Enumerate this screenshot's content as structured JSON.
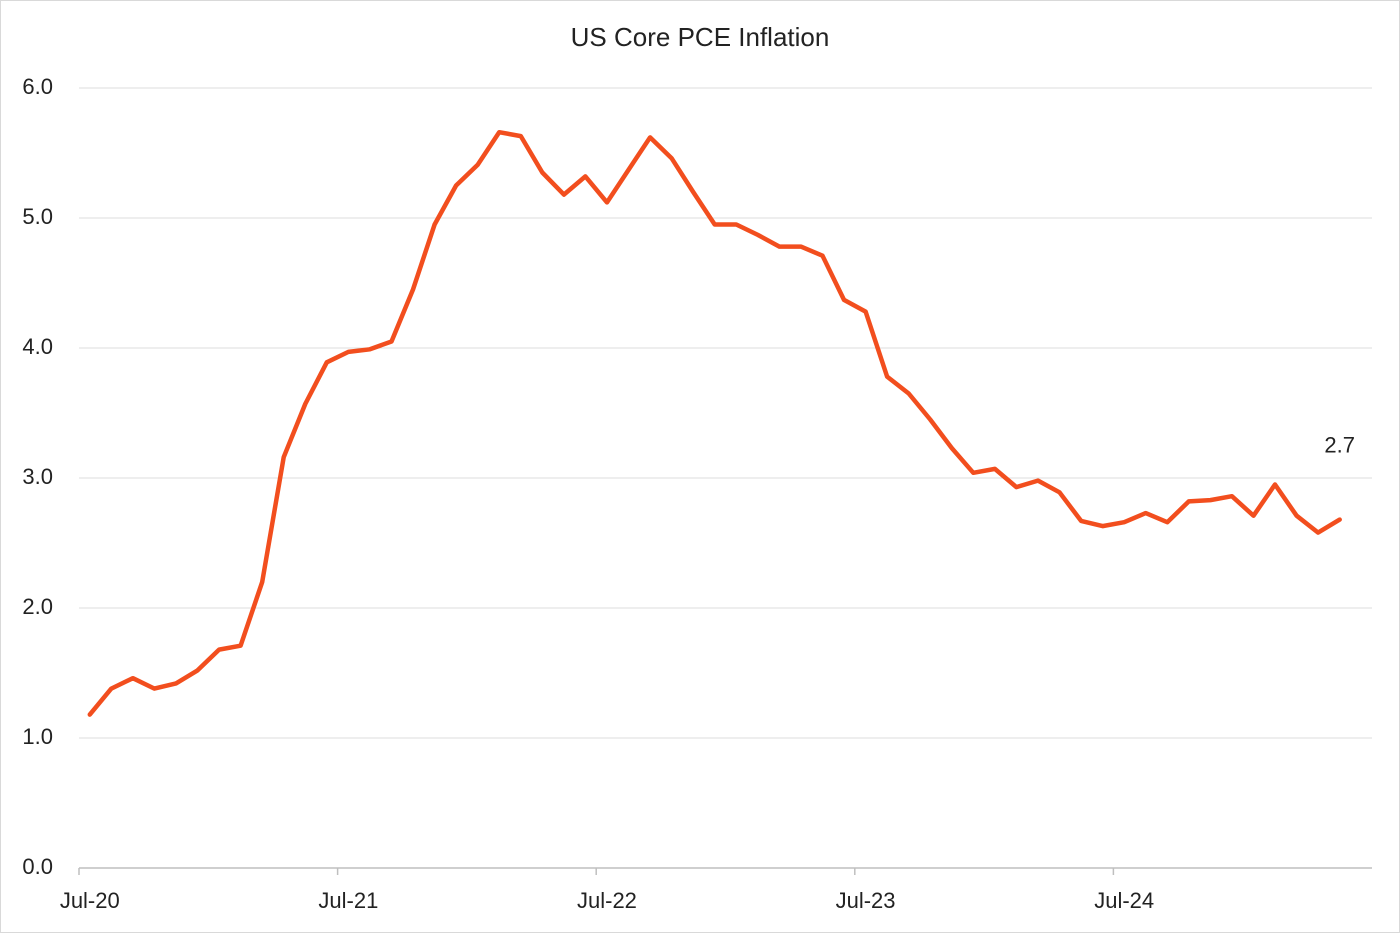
{
  "chart_data": {
    "type": "line",
    "title": "US Core PCE Inflation",
    "categories": [
      "Jul-20",
      null,
      null,
      null,
      null,
      null,
      null,
      null,
      null,
      null,
      null,
      null,
      "Jul-21",
      null,
      null,
      null,
      null,
      null,
      null,
      null,
      null,
      null,
      null,
      null,
      "Jul-22",
      null,
      null,
      null,
      null,
      null,
      null,
      null,
      null,
      null,
      null,
      null,
      "Jul-23",
      null,
      null,
      null,
      null,
      null,
      null,
      null,
      null,
      null,
      null,
      null,
      "Jul-24",
      null,
      null,
      null,
      null,
      null,
      null,
      null,
      null,
      null,
      null
    ],
    "series": [
      {
        "name": "US Core PCE",
        "color": "#f24e1e",
        "values": [
          1.18,
          1.38,
          1.46,
          1.38,
          1.42,
          1.52,
          1.68,
          1.71,
          2.2,
          3.16,
          3.57,
          3.89,
          3.97,
          3.99,
          4.05,
          4.45,
          4.95,
          5.25,
          5.41,
          5.66,
          5.63,
          5.35,
          5.18,
          5.32,
          5.12,
          5.37,
          5.62,
          5.46,
          5.2,
          4.95,
          4.95,
          4.87,
          4.78,
          4.78,
          4.71,
          4.37,
          4.28,
          3.78,
          3.65,
          3.45,
          3.23,
          3.04,
          3.07,
          2.93,
          2.98,
          2.89,
          2.67,
          2.63,
          2.66,
          2.73,
          2.66,
          2.82,
          2.83,
          2.86,
          2.71,
          2.95,
          2.71,
          2.58,
          2.68
        ],
        "value_labels": [
          null,
          null,
          null,
          null,
          null,
          null,
          null,
          null,
          null,
          null,
          null,
          null,
          null,
          null,
          null,
          null,
          null,
          null,
          null,
          null,
          null,
          null,
          null,
          null,
          null,
          null,
          null,
          null,
          null,
          null,
          null,
          null,
          null,
          null,
          null,
          null,
          null,
          null,
          null,
          null,
          null,
          null,
          null,
          null,
          null,
          null,
          null,
          null,
          null,
          null,
          null,
          null,
          null,
          null,
          null,
          null,
          null,
          null,
          "2.7"
        ]
      }
    ],
    "ylim": [
      0,
      6
    ],
    "yticks": [
      {
        "value": 0,
        "label": "0.0"
      },
      {
        "value": 1,
        "label": "1.0"
      },
      {
        "value": 2,
        "label": "2.0"
      },
      {
        "value": 3,
        "label": "3.0"
      },
      {
        "value": 4,
        "label": "4.0"
      },
      {
        "value": 5,
        "label": "5.0"
      },
      {
        "value": 6,
        "label": "6.0"
      }
    ],
    "grid": true
  }
}
